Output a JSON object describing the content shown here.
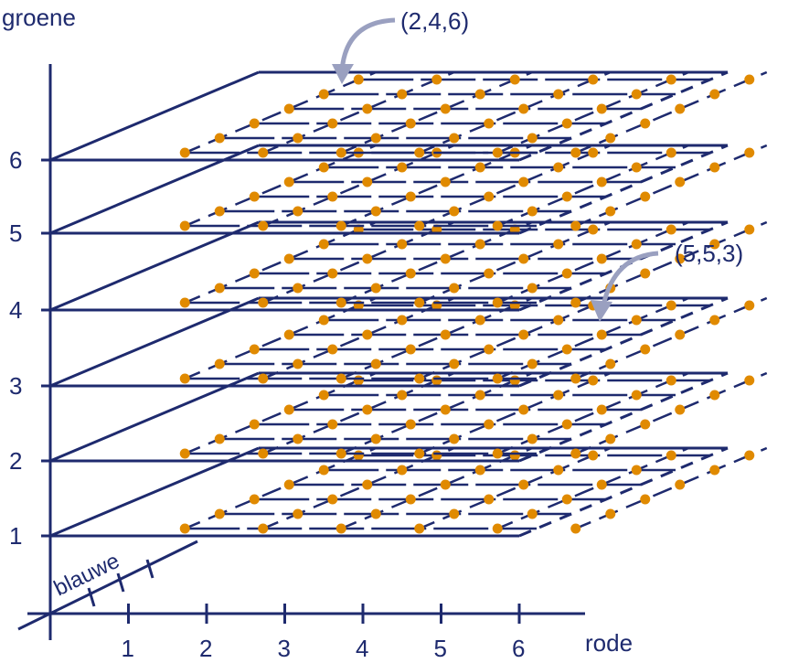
{
  "labels": {
    "green_axis": "groene",
    "red_axis": "rode",
    "blue_axis": "blauwe"
  },
  "green_ticks": [
    "1",
    "2",
    "3",
    "4",
    "5",
    "6"
  ],
  "red_ticks": [
    "1",
    "2",
    "3",
    "4",
    "5",
    "6"
  ],
  "grid_size": 6,
  "annotations": [
    {
      "text": "(2,4,6)",
      "point": {
        "red": 2,
        "blue": 4,
        "green": 6
      }
    },
    {
      "text": "(5,5,3)",
      "point": {
        "red": 5,
        "blue": 5,
        "green": 3
      }
    }
  ],
  "colors": {
    "line": "#1e2a6e",
    "dot": "#e08a00",
    "arrow": "#9aa0c0"
  }
}
